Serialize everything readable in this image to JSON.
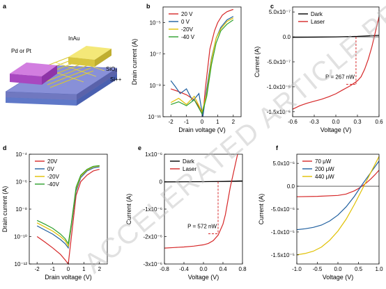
{
  "figure": {
    "watermark": "ACCELERATED ARTICLE PREVIEW"
  },
  "schematic": {
    "panel_letter": "a",
    "labels": {
      "contact_left": "Pd or Pt",
      "contact_right": "InAu",
      "oxide": "SiO₂",
      "substrate": "Si++"
    },
    "colors": {
      "contact_left": "#c060d8",
      "contact_right": "#f0e060",
      "oxide": "#8890d8",
      "substrate": "#9ab0e8",
      "wires": "#d8c830"
    }
  },
  "chart_data": [
    {
      "panel": "b",
      "type": "line",
      "xlabel": "Drain voltage (V)",
      "ylabel": "Drain current (A)",
      "yscale": "log",
      "xlim": [
        -2.5,
        2.5
      ],
      "ylim": [
        1e-11,
        0.0001
      ],
      "xticks": [
        -2,
        -1,
        0,
        1,
        2
      ],
      "yticks": [
        1e-11,
        1e-09,
        1e-07,
        1e-05
      ],
      "ytick_labels": [
        "10⁻¹¹",
        "10⁻⁹",
        "10⁻⁷",
        "10⁻⁵"
      ],
      "legend": "top-left",
      "series": [
        {
          "name": "20 V",
          "color": "#d62728",
          "x": [
            -2,
            -1.5,
            -1,
            -0.5,
            -0.1,
            0.05,
            0.2,
            0.5,
            0.8,
            1,
            1.3,
            1.6,
            2
          ],
          "y": [
            6e-10,
            4e-10,
            2.5e-10,
            1.2e-10,
            3e-11,
            1e-11,
            5e-10,
            2e-07,
            3e-06,
            1e-05,
            3e-05,
            5e-05,
            7e-05
          ]
        },
        {
          "name": "0 V",
          "color": "#1f5f9f",
          "x": [
            -2,
            -1.7,
            -1.4,
            -1,
            -0.6,
            -0.2,
            0.05,
            0.3,
            0.6,
            0.9,
            1.2,
            1.6,
            2
          ],
          "y": [
            2e-09,
            8e-10,
            3e-10,
            6e-10,
            1e-10,
            3e-10,
            1e-11,
            6e-10,
            5e-08,
            1e-06,
            5e-06,
            1.5e-05,
            2.5e-05
          ]
        },
        {
          "name": "-20V",
          "color": "#e0c000",
          "x": [
            -2,
            -1.5,
            -1,
            -0.5,
            0,
            0.3,
            0.6,
            0.9,
            1.2,
            1.6,
            2
          ],
          "y": [
            8e-11,
            1.5e-10,
            6e-11,
            2e-10,
            2e-11,
            3e-10,
            4e-08,
            1e-06,
            4e-06,
            1.2e-05,
            2e-05
          ]
        },
        {
          "name": "-40 V",
          "color": "#2ca02c",
          "x": [
            -2,
            -1.5,
            -1,
            -0.5,
            0,
            0.3,
            0.6,
            0.9,
            1.2,
            1.6,
            2
          ],
          "y": [
            6e-11,
            9e-11,
            5e-11,
            1.2e-10,
            1.5e-11,
            2e-10,
            2e-08,
            5e-07,
            3e-06,
            8e-06,
            1.5e-05
          ]
        }
      ]
    },
    {
      "panel": "c",
      "type": "line",
      "xlabel": "Voltage (V)",
      "ylabel": "Current (A)",
      "xlim": [
        -0.6,
        0.6
      ],
      "ylim": [
        -1.6e-06,
        6e-07
      ],
      "xticks": [
        -0.6,
        -0.3,
        0.0,
        0.3,
        0.6
      ],
      "xtick_labels": [
        "-0.6",
        "-0.3",
        "0.0",
        "0.3",
        "0.6"
      ],
      "yticks": [
        5e-07,
        0,
        -5e-07,
        -1e-06,
        -1.5e-06
      ],
      "ytick_labels": [
        "5.0x10⁻⁷",
        "0.0",
        "-5.0x10⁻⁷",
        "-1.0x10⁻⁶",
        "-1.5x10⁻⁶"
      ],
      "legend": "top-left",
      "annotation": {
        "text": "P = 267 nW",
        "x": 0.28,
        "y": -9.5e-07
      },
      "series": [
        {
          "name": "Dark",
          "color": "#000000",
          "x": [
            -0.6,
            -0.3,
            0,
            0.3,
            0.6
          ],
          "y": [
            -1e-08,
            -5e-09,
            0,
            1e-08,
            3e-08
          ]
        },
        {
          "name": "Laser",
          "color": "#d62728",
          "x": [
            -0.6,
            -0.5,
            -0.4,
            -0.3,
            -0.2,
            -0.1,
            0,
            0.1,
            0.2,
            0.3,
            0.35,
            0.4,
            0.45,
            0.5,
            0.55,
            0.6
          ],
          "y": [
            -1.45e-06,
            -1.38e-06,
            -1.33e-06,
            -1.29e-06,
            -1.25e-06,
            -1.2e-06,
            -1.14e-06,
            -1.06e-06,
            -9.8e-07,
            -8.8e-07,
            -8e-07,
            -6.5e-07,
            -4.5e-07,
            -2e-07,
            1e-07,
            4e-07
          ]
        }
      ]
    },
    {
      "panel": "d",
      "type": "line",
      "xlabel": "Drain voltage (V)",
      "ylabel": "Drain current (A)",
      "yscale": "log",
      "xlim": [
        -2.5,
        2.5
      ],
      "ylim": [
        1e-12,
        0.0001
      ],
      "xticks": [
        -2,
        -1,
        0,
        1,
        2
      ],
      "yticks": [
        1e-12,
        1e-10,
        1e-08,
        1e-06,
        0.0001
      ],
      "ytick_labels": [
        "10⁻¹²",
        "10⁻¹⁰",
        "10⁻⁸",
        "10⁻⁶",
        "10⁻⁴"
      ],
      "legend": "top-left",
      "series": [
        {
          "name": "20V",
          "color": "#d62728",
          "x": [
            -2,
            -1.5,
            -1,
            -0.5,
            -0.2,
            0,
            0.2,
            0.5,
            0.8,
            1.2,
            1.6,
            2
          ],
          "y": [
            1e-10,
            4e-11,
            1.5e-11,
            5e-12,
            2e-12,
            1e-12,
            1e-10,
            1e-07,
            1e-06,
            3e-06,
            6e-06,
            8e-06
          ]
        },
        {
          "name": "0V",
          "color": "#1f5f9f",
          "x": [
            -2,
            -1.5,
            -1,
            -0.5,
            -0.2,
            0,
            0.2,
            0.5,
            0.8,
            1.2,
            1.6,
            2
          ],
          "y": [
            6e-10,
            3e-10,
            1.5e-10,
            6e-11,
            3e-11,
            1.5e-11,
            6e-10,
            2e-07,
            2e-06,
            6e-06,
            1e-05,
            1.2e-05
          ]
        },
        {
          "name": "-20V",
          "color": "#e0c000",
          "x": [
            -2,
            -1.5,
            -1,
            -0.5,
            -0.2,
            0,
            0.2,
            0.5,
            0.8,
            1.2,
            1.6,
            2
          ],
          "y": [
            1e-09,
            5e-10,
            2.5e-10,
            1e-10,
            5e-11,
            2e-11,
            8e-10,
            3e-07,
            2.5e-06,
            7e-06,
            1.2e-05,
            1.4e-05
          ]
        },
        {
          "name": "-40V",
          "color": "#2ca02c",
          "x": [
            -2,
            -1.5,
            -1,
            -0.5,
            -0.2,
            0,
            0.2,
            0.5,
            0.8,
            1.2,
            1.6,
            2
          ],
          "y": [
            1.5e-09,
            8e-10,
            4e-10,
            1.5e-10,
            7e-11,
            3e-11,
            1e-09,
            4e-07,
            3e-06,
            8e-06,
            1.3e-05,
            1.5e-05
          ]
        }
      ]
    },
    {
      "panel": "e",
      "type": "line",
      "xlabel": "Voltage (V)",
      "ylabel": "Current (A)",
      "xlim": [
        -0.8,
        0.8
      ],
      "ylim": [
        -3e-06,
        1e-06
      ],
      "xticks": [
        -0.8,
        -0.4,
        0.0,
        0.4,
        0.8
      ],
      "xtick_labels": [
        "-0.8",
        "-0.4",
        "0.0",
        "0.4",
        "0.8"
      ],
      "yticks": [
        1e-06,
        0,
        -1e-06,
        -2e-06,
        -3e-06
      ],
      "ytick_labels": [
        "1x10⁻⁶",
        "0",
        "-1x10⁻⁶",
        "-2x10⁻⁶",
        "-3x10⁻⁶"
      ],
      "legend": "top-left",
      "annotation": {
        "text": "P = 572 nW",
        "x": 0.3,
        "y": -1.9e-06
      },
      "series": [
        {
          "name": "Dark",
          "color": "#000000",
          "x": [
            -0.8,
            -0.4,
            0,
            0.4,
            0.8
          ],
          "y": [
            -1e-08,
            -5e-09,
            0,
            1e-08,
            3e-08
          ]
        },
        {
          "name": "Laser",
          "color": "#d62728",
          "x": [
            -0.8,
            -0.6,
            -0.4,
            -0.2,
            0,
            0.1,
            0.2,
            0.3,
            0.4,
            0.45,
            0.5,
            0.55,
            0.6,
            0.65,
            0.7
          ],
          "y": [
            -2.42e-06,
            -2.4e-06,
            -2.38e-06,
            -2.35e-06,
            -2.3e-06,
            -2.25e-06,
            -2.15e-06,
            -1.95e-06,
            -1.55e-06,
            -1.2e-06,
            -7e-07,
            -2e-07,
            2e-07,
            6e-07,
            1e-06
          ]
        }
      ]
    },
    {
      "panel": "f",
      "type": "line",
      "xlabel": "Voltage (V)",
      "ylabel": "Current (A)",
      "xlim": [
        -1.0,
        1.0
      ],
      "ylim": [
        -1.7e-05,
        7e-06
      ],
      "xticks": [
        -1.0,
        -0.5,
        0.0,
        0.5,
        1.0
      ],
      "xtick_labels": [
        "-1.0",
        "-0.5",
        "0.0",
        "0.5",
        "1.0"
      ],
      "yticks": [
        5e-06,
        0,
        -5e-06,
        -1e-05,
        -1.5e-05
      ],
      "ytick_labels": [
        "5.0x10⁻⁶",
        "0.0",
        "-5.0x10⁻⁶",
        "-1.0x10⁻⁵",
        "-1.5x10⁻⁵"
      ],
      "legend": "top-left",
      "series": [
        {
          "name": "70 μW",
          "color": "#d62728",
          "x": [
            -1,
            -0.5,
            0,
            0.2,
            0.4,
            0.5,
            0.6,
            0.7,
            0.8,
            0.9,
            1
          ],
          "y": [
            -2.3e-06,
            -2.2e-06,
            -2e-06,
            -1.7e-06,
            -1e-06,
            -5e-07,
            1e-07,
            8e-07,
            1.6e-06,
            2.5e-06,
            3.5e-06
          ]
        },
        {
          "name": "200 μW",
          "color": "#1f5f9f",
          "x": [
            -1,
            -0.8,
            -0.6,
            -0.4,
            -0.2,
            0,
            0.2,
            0.4,
            0.6,
            0.8,
            1
          ],
          "y": [
            -9.5e-06,
            -9.3e-06,
            -9e-06,
            -8.5e-06,
            -7.6e-06,
            -6.3e-06,
            -4.5e-06,
            -2.2e-06,
            5e-07,
            3e-06,
            5.5e-06
          ]
        },
        {
          "name": "440 μW",
          "color": "#e0c000",
          "x": [
            -1,
            -0.8,
            -0.6,
            -0.4,
            -0.2,
            0,
            0.2,
            0.4,
            0.6,
            0.8,
            1
          ],
          "y": [
            -1.5e-05,
            -1.47e-05,
            -1.42e-05,
            -1.33e-05,
            -1.18e-05,
            -9.8e-06,
            -7.2e-06,
            -4e-06,
            -5e-07,
            3e-06,
            6.5e-06
          ]
        }
      ]
    }
  ]
}
